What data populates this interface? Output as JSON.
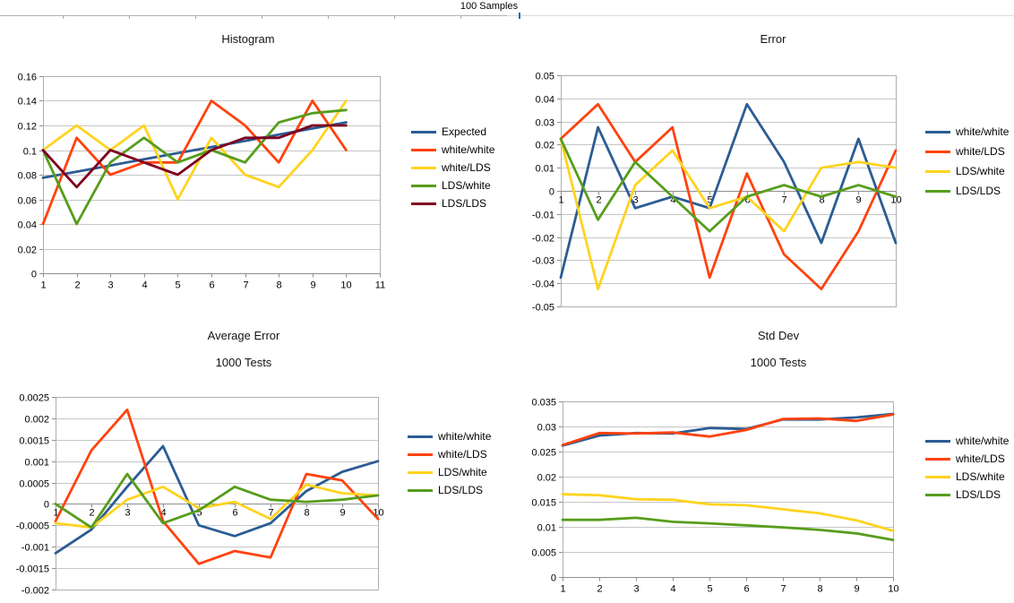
{
  "header": {
    "title": "100 Samples"
  },
  "chart_data": [
    {
      "type": "line",
      "title": "Histogram",
      "xlabel": "",
      "ylabel": "",
      "grid": true,
      "legend_position": "right",
      "ylim": [
        0,
        0.16
      ],
      "x_ticks": [
        "1",
        "2",
        "3",
        "4",
        "5",
        "6",
        "7",
        "8",
        "9",
        "10",
        "11"
      ],
      "y_ticks": [
        "0.16",
        "0.14",
        "0.12",
        "0.1",
        "0.08",
        "0.06",
        "0.04",
        "0.02",
        "0"
      ],
      "categories": [
        1,
        2,
        3,
        4,
        5,
        6,
        7,
        8,
        9,
        10
      ],
      "series": [
        {
          "name": "Expected",
          "color": "#2B5C94",
          "values": [
            0.0775,
            0.0825,
            0.0875,
            0.0925,
            0.0975,
            0.1025,
            0.1075,
            0.1125,
            0.1175,
            0.1225
          ]
        },
        {
          "name": "white/white",
          "color": "#FF420E",
          "values": [
            0.04,
            0.11,
            0.08,
            0.09,
            0.09,
            0.14,
            0.12,
            0.09,
            0.14,
            0.1
          ]
        },
        {
          "name": "white/LDS",
          "color": "#FFD320",
          "values": [
            0.1,
            0.12,
            0.1,
            0.12,
            0.06,
            0.11,
            0.08,
            0.07,
            0.1,
            0.14
          ]
        },
        {
          "name": "LDS/white",
          "color": "#579D1C",
          "values": [
            0.1,
            0.04,
            0.09,
            0.11,
            0.09,
            0.1,
            0.09,
            0.1225,
            0.13,
            0.1325
          ]
        },
        {
          "name": "LDS/LDS",
          "color": "#7E0021",
          "values": [
            0.1,
            0.07,
            0.1,
            0.09,
            0.08,
            0.1,
            0.11,
            0.11,
            0.12,
            0.12
          ]
        }
      ]
    },
    {
      "type": "line",
      "title": "Error",
      "xlabel": "",
      "ylabel": "",
      "grid": true,
      "legend_position": "right",
      "ylim": [
        -0.05,
        0.05
      ],
      "x_ticks": [
        "1",
        "2",
        "3",
        "4",
        "5",
        "6",
        "7",
        "8",
        "9",
        "10"
      ],
      "y_ticks": [
        "0.05",
        "0.04",
        "0.03",
        "0.02",
        "0.01",
        "0",
        "-0.01",
        "-0.02",
        "-0.03",
        "-0.04",
        "-0.05"
      ],
      "categories": [
        1,
        2,
        3,
        4,
        5,
        6,
        7,
        8,
        9,
        10
      ],
      "series": [
        {
          "name": "white/white",
          "color": "#2B5C94",
          "values": [
            -0.0375,
            0.0275,
            -0.0075,
            -0.0025,
            -0.0075,
            0.0375,
            0.0125,
            -0.0225,
            0.0225,
            -0.0225
          ]
        },
        {
          "name": "white/LDS",
          "color": "#FF420E",
          "values": [
            0.0225,
            0.0375,
            0.0125,
            0.0275,
            -0.0375,
            0.0075,
            -0.0275,
            -0.0425,
            -0.0175,
            0.0175
          ]
        },
        {
          "name": "LDS/white",
          "color": "#FFD320",
          "values": [
            0.0225,
            -0.0425,
            0.0025,
            0.0175,
            -0.0075,
            -0.0025,
            -0.0175,
            0.01,
            0.0125,
            0.01
          ]
        },
        {
          "name": "LDS/LDS",
          "color": "#579D1C",
          "values": [
            0.0225,
            -0.0125,
            0.0125,
            -0.0025,
            -0.0175,
            -0.0025,
            0.0025,
            -0.0025,
            0.0025,
            -0.0025
          ]
        }
      ]
    },
    {
      "type": "line",
      "title": "Average Error",
      "subtitle": "1000 Tests",
      "xlabel": "",
      "ylabel": "",
      "grid": true,
      "legend_position": "right",
      "ylim": [
        -0.002,
        0.0025
      ],
      "x_ticks": [
        "1",
        "2",
        "3",
        "4",
        "5",
        "6",
        "7",
        "8",
        "9",
        "10"
      ],
      "y_ticks": [
        "0.0025",
        "0.002",
        "0.0015",
        "0.001",
        "0.0005",
        "0",
        "-0.0005",
        "-0.001",
        "-0.0015",
        "-0.002"
      ],
      "categories": [
        1,
        2,
        3,
        4,
        5,
        6,
        7,
        8,
        9,
        10
      ],
      "series": [
        {
          "name": "white/white",
          "color": "#2B5C94",
          "values": [
            -0.00115,
            -0.0006,
            0.0004,
            0.00135,
            -0.0005,
            -0.00075,
            -0.00045,
            0.0003,
            0.00075,
            0.001
          ]
        },
        {
          "name": "white/LDS",
          "color": "#FF420E",
          "values": [
            -0.0004,
            0.00125,
            0.0022,
            -0.0004,
            -0.0014,
            -0.0011,
            -0.00125,
            0.0007,
            0.00055,
            -0.00035
          ]
        },
        {
          "name": "LDS/white",
          "color": "#FFD320",
          "values": [
            -0.00045,
            -0.00055,
            0.0001,
            0.0004,
            -0.0001,
            5e-05,
            -0.00035,
            0.00045,
            0.00025,
            0.0002
          ]
        },
        {
          "name": "LDS/LDS",
          "color": "#579D1C",
          "values": [
            0,
            -0.00055,
            0.0007,
            -0.00045,
            -0.00015,
            0.0004,
            0.0001,
            5e-05,
            0.0001,
            0.0002
          ]
        }
      ]
    },
    {
      "type": "line",
      "title": "Std Dev",
      "subtitle": "1000 Tests",
      "xlabel": "",
      "ylabel": "",
      "grid": true,
      "legend_position": "right",
      "ylim": [
        0,
        0.035
      ],
      "x_ticks": [
        "1",
        "2",
        "3",
        "4",
        "5",
        "6",
        "7",
        "8",
        "9",
        "10"
      ],
      "y_ticks": [
        "0.035",
        "0.03",
        "0.025",
        "0.02",
        "0.015",
        "0.01",
        "0.005",
        "0"
      ],
      "categories": [
        1,
        2,
        3,
        4,
        5,
        6,
        7,
        8,
        9,
        10
      ],
      "series": [
        {
          "name": "white/white",
          "color": "#2B5C94",
          "values": [
            0.0262,
            0.0282,
            0.0287,
            0.0286,
            0.0297,
            0.0295,
            0.0314,
            0.0314,
            0.0318,
            0.0325
          ]
        },
        {
          "name": "white/LDS",
          "color": "#FF420E",
          "values": [
            0.0263,
            0.0287,
            0.0286,
            0.0288,
            0.028,
            0.0293,
            0.0315,
            0.0316,
            0.0311,
            0.0324
          ]
        },
        {
          "name": "LDS/white",
          "color": "#FFD320",
          "values": [
            0.0165,
            0.0163,
            0.0155,
            0.0154,
            0.0145,
            0.0143,
            0.0135,
            0.0127,
            0.0113,
            0.0092
          ]
        },
        {
          "name": "LDS/LDS",
          "color": "#579D1C",
          "values": [
            0.0114,
            0.0114,
            0.0118,
            0.011,
            0.0107,
            0.0103,
            0.0099,
            0.0094,
            0.0087,
            0.0074
          ]
        }
      ]
    }
  ]
}
